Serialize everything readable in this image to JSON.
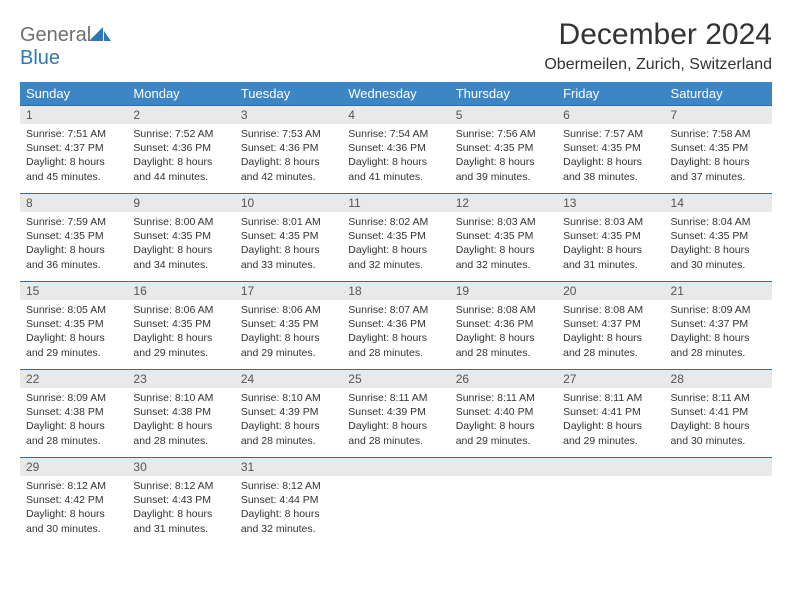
{
  "brand": {
    "part1": "General",
    "part2": "Blue"
  },
  "title": "December 2024",
  "location": "Obermeilen, Zurich, Switzerland",
  "colors": {
    "header_bg": "#3d86c6",
    "header_text": "#ffffff",
    "daynum_bg": "#e9e9e9",
    "row_border": "#2f6ea7",
    "body_text": "#333333",
    "logo_gray": "#6f6f6f",
    "logo_blue": "#2f77b6",
    "page_bg": "#ffffff"
  },
  "weekdays": [
    "Sunday",
    "Monday",
    "Tuesday",
    "Wednesday",
    "Thursday",
    "Friday",
    "Saturday"
  ],
  "days": [
    {
      "n": "1",
      "sr": "Sunrise: 7:51 AM",
      "ss": "Sunset: 4:37 PM",
      "dl1": "Daylight: 8 hours",
      "dl2": "and 45 minutes."
    },
    {
      "n": "2",
      "sr": "Sunrise: 7:52 AM",
      "ss": "Sunset: 4:36 PM",
      "dl1": "Daylight: 8 hours",
      "dl2": "and 44 minutes."
    },
    {
      "n": "3",
      "sr": "Sunrise: 7:53 AM",
      "ss": "Sunset: 4:36 PM",
      "dl1": "Daylight: 8 hours",
      "dl2": "and 42 minutes."
    },
    {
      "n": "4",
      "sr": "Sunrise: 7:54 AM",
      "ss": "Sunset: 4:36 PM",
      "dl1": "Daylight: 8 hours",
      "dl2": "and 41 minutes."
    },
    {
      "n": "5",
      "sr": "Sunrise: 7:56 AM",
      "ss": "Sunset: 4:35 PM",
      "dl1": "Daylight: 8 hours",
      "dl2": "and 39 minutes."
    },
    {
      "n": "6",
      "sr": "Sunrise: 7:57 AM",
      "ss": "Sunset: 4:35 PM",
      "dl1": "Daylight: 8 hours",
      "dl2": "and 38 minutes."
    },
    {
      "n": "7",
      "sr": "Sunrise: 7:58 AM",
      "ss": "Sunset: 4:35 PM",
      "dl1": "Daylight: 8 hours",
      "dl2": "and 37 minutes."
    },
    {
      "n": "8",
      "sr": "Sunrise: 7:59 AM",
      "ss": "Sunset: 4:35 PM",
      "dl1": "Daylight: 8 hours",
      "dl2": "and 36 minutes."
    },
    {
      "n": "9",
      "sr": "Sunrise: 8:00 AM",
      "ss": "Sunset: 4:35 PM",
      "dl1": "Daylight: 8 hours",
      "dl2": "and 34 minutes."
    },
    {
      "n": "10",
      "sr": "Sunrise: 8:01 AM",
      "ss": "Sunset: 4:35 PM",
      "dl1": "Daylight: 8 hours",
      "dl2": "and 33 minutes."
    },
    {
      "n": "11",
      "sr": "Sunrise: 8:02 AM",
      "ss": "Sunset: 4:35 PM",
      "dl1": "Daylight: 8 hours",
      "dl2": "and 32 minutes."
    },
    {
      "n": "12",
      "sr": "Sunrise: 8:03 AM",
      "ss": "Sunset: 4:35 PM",
      "dl1": "Daylight: 8 hours",
      "dl2": "and 32 minutes."
    },
    {
      "n": "13",
      "sr": "Sunrise: 8:03 AM",
      "ss": "Sunset: 4:35 PM",
      "dl1": "Daylight: 8 hours",
      "dl2": "and 31 minutes."
    },
    {
      "n": "14",
      "sr": "Sunrise: 8:04 AM",
      "ss": "Sunset: 4:35 PM",
      "dl1": "Daylight: 8 hours",
      "dl2": "and 30 minutes."
    },
    {
      "n": "15",
      "sr": "Sunrise: 8:05 AM",
      "ss": "Sunset: 4:35 PM",
      "dl1": "Daylight: 8 hours",
      "dl2": "and 29 minutes."
    },
    {
      "n": "16",
      "sr": "Sunrise: 8:06 AM",
      "ss": "Sunset: 4:35 PM",
      "dl1": "Daylight: 8 hours",
      "dl2": "and 29 minutes."
    },
    {
      "n": "17",
      "sr": "Sunrise: 8:06 AM",
      "ss": "Sunset: 4:35 PM",
      "dl1": "Daylight: 8 hours",
      "dl2": "and 29 minutes."
    },
    {
      "n": "18",
      "sr": "Sunrise: 8:07 AM",
      "ss": "Sunset: 4:36 PM",
      "dl1": "Daylight: 8 hours",
      "dl2": "and 28 minutes."
    },
    {
      "n": "19",
      "sr": "Sunrise: 8:08 AM",
      "ss": "Sunset: 4:36 PM",
      "dl1": "Daylight: 8 hours",
      "dl2": "and 28 minutes."
    },
    {
      "n": "20",
      "sr": "Sunrise: 8:08 AM",
      "ss": "Sunset: 4:37 PM",
      "dl1": "Daylight: 8 hours",
      "dl2": "and 28 minutes."
    },
    {
      "n": "21",
      "sr": "Sunrise: 8:09 AM",
      "ss": "Sunset: 4:37 PM",
      "dl1": "Daylight: 8 hours",
      "dl2": "and 28 minutes."
    },
    {
      "n": "22",
      "sr": "Sunrise: 8:09 AM",
      "ss": "Sunset: 4:38 PM",
      "dl1": "Daylight: 8 hours",
      "dl2": "and 28 minutes."
    },
    {
      "n": "23",
      "sr": "Sunrise: 8:10 AM",
      "ss": "Sunset: 4:38 PM",
      "dl1": "Daylight: 8 hours",
      "dl2": "and 28 minutes."
    },
    {
      "n": "24",
      "sr": "Sunrise: 8:10 AM",
      "ss": "Sunset: 4:39 PM",
      "dl1": "Daylight: 8 hours",
      "dl2": "and 28 minutes."
    },
    {
      "n": "25",
      "sr": "Sunrise: 8:11 AM",
      "ss": "Sunset: 4:39 PM",
      "dl1": "Daylight: 8 hours",
      "dl2": "and 28 minutes."
    },
    {
      "n": "26",
      "sr": "Sunrise: 8:11 AM",
      "ss": "Sunset: 4:40 PM",
      "dl1": "Daylight: 8 hours",
      "dl2": "and 29 minutes."
    },
    {
      "n": "27",
      "sr": "Sunrise: 8:11 AM",
      "ss": "Sunset: 4:41 PM",
      "dl1": "Daylight: 8 hours",
      "dl2": "and 29 minutes."
    },
    {
      "n": "28",
      "sr": "Sunrise: 8:11 AM",
      "ss": "Sunset: 4:41 PM",
      "dl1": "Daylight: 8 hours",
      "dl2": "and 30 minutes."
    },
    {
      "n": "29",
      "sr": "Sunrise: 8:12 AM",
      "ss": "Sunset: 4:42 PM",
      "dl1": "Daylight: 8 hours",
      "dl2": "and 30 minutes."
    },
    {
      "n": "30",
      "sr": "Sunrise: 8:12 AM",
      "ss": "Sunset: 4:43 PM",
      "dl1": "Daylight: 8 hours",
      "dl2": "and 31 minutes."
    },
    {
      "n": "31",
      "sr": "Sunrise: 8:12 AM",
      "ss": "Sunset: 4:44 PM",
      "dl1": "Daylight: 8 hours",
      "dl2": "and 32 minutes."
    }
  ]
}
